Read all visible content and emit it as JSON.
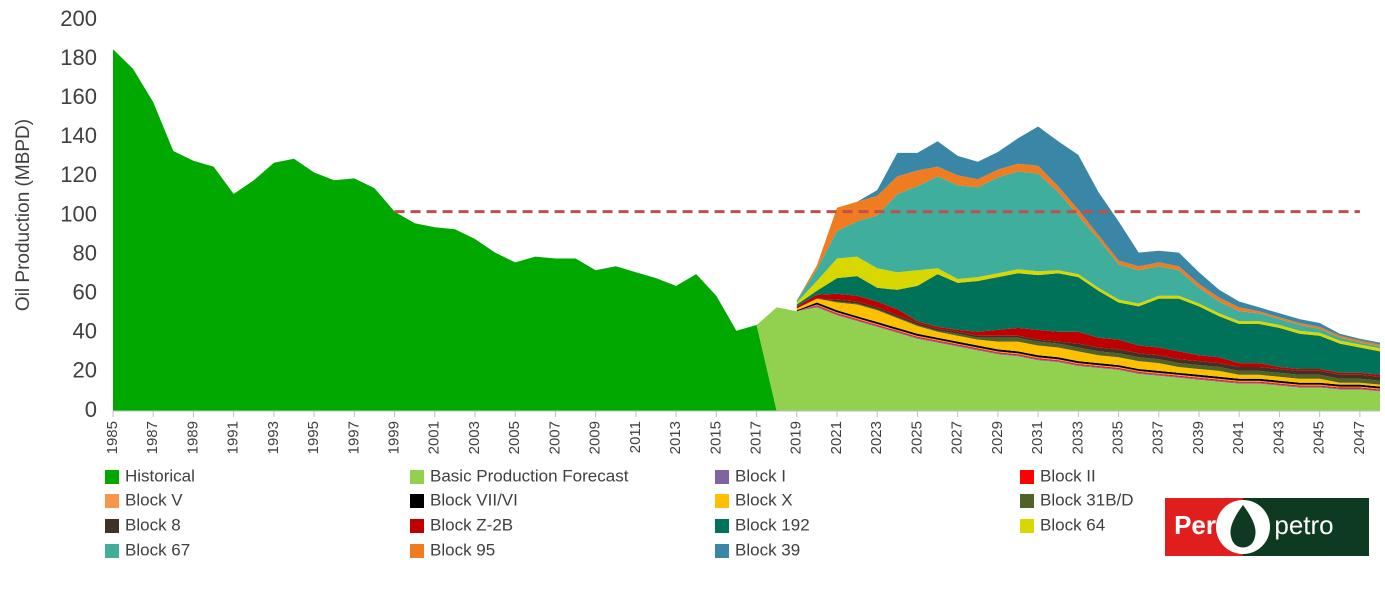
{
  "chart_data": {
    "type": "stacked_area",
    "y_label": "Oil Production (MBPD)",
    "x": [
      1985,
      1986,
      1987,
      1988,
      1989,
      1990,
      1991,
      1992,
      1993,
      1994,
      1995,
      1996,
      1997,
      1998,
      1999,
      2000,
      2001,
      2002,
      2003,
      2004,
      2005,
      2006,
      2007,
      2008,
      2009,
      2010,
      2011,
      2012,
      2013,
      2014,
      2015,
      2016,
      2017,
      2018,
      2019,
      2020,
      2021,
      2022,
      2023,
      2024,
      2025,
      2026,
      2027,
      2028,
      2029,
      2030,
      2031,
      2032,
      2033,
      2034,
      2035,
      2036,
      2037,
      2038,
      2039,
      2040,
      2041,
      2042,
      2043,
      2044,
      2045,
      2046,
      2047,
      2048
    ],
    "xlim": [
      1985,
      2048
    ],
    "xticks": [
      1985,
      1987,
      1989,
      1991,
      1993,
      1995,
      1997,
      1999,
      2001,
      2003,
      2005,
      2007,
      2009,
      2011,
      2013,
      2015,
      2017,
      2019,
      2021,
      2023,
      2025,
      2027,
      2029,
      2031,
      2033,
      2035,
      2037,
      2039,
      2041,
      2043,
      2045,
      2047
    ],
    "ylim": [
      0,
      200
    ],
    "yticks": [
      0,
      20,
      40,
      60,
      80,
      100,
      120,
      140,
      160,
      180,
      200
    ],
    "grid": false,
    "reference_line": {
      "value": 102,
      "x": [
        1999,
        2047
      ],
      "color": "#c0504d"
    },
    "series": [
      {
        "name": "Historical",
        "color": "#00a800",
        "values": [
          185,
          175,
          158,
          133,
          128,
          125,
          111,
          118,
          127,
          129,
          122,
          118,
          119,
          114,
          102,
          96,
          94,
          93,
          88,
          81,
          76,
          79,
          78,
          78,
          72,
          74,
          71,
          68,
          64,
          70,
          59,
          41,
          44,
          0,
          null,
          null,
          null,
          null,
          null,
          null,
          null,
          null,
          null,
          null,
          null,
          null,
          null,
          null,
          null,
          null,
          null,
          null,
          null,
          null,
          null,
          null,
          null,
          null,
          null,
          null,
          null,
          null,
          null,
          null
        ]
      },
      {
        "name": "Basic Production Forecast",
        "color": "#92d050",
        "values": [
          null,
          null,
          null,
          null,
          null,
          null,
          null,
          null,
          null,
          null,
          null,
          null,
          null,
          null,
          null,
          null,
          null,
          null,
          null,
          null,
          null,
          null,
          null,
          null,
          null,
          null,
          null,
          null,
          null,
          null,
          null,
          null,
          0,
          53,
          51,
          53,
          49,
          46,
          43,
          40,
          37,
          35,
          33,
          31,
          29,
          28,
          26,
          25,
          23,
          22,
          21,
          19,
          18,
          17,
          16,
          15,
          14,
          14,
          13,
          12,
          12,
          11,
          11,
          10
        ]
      },
      {
        "name": "Block I",
        "color": "#8064a2",
        "values": [
          null,
          null,
          null,
          null,
          null,
          null,
          null,
          null,
          null,
          null,
          null,
          null,
          null,
          null,
          null,
          null,
          null,
          null,
          null,
          null,
          null,
          null,
          null,
          null,
          null,
          null,
          null,
          null,
          null,
          null,
          null,
          null,
          null,
          null,
          0,
          0.5,
          0.5,
          0.5,
          0.5,
          0.5,
          0.5,
          0.5,
          0.5,
          0.5,
          0.5,
          0.5,
          0.5,
          0.5,
          0.5,
          0.5,
          0.5,
          0.5,
          0.5,
          0.5,
          0.5,
          0.5,
          0.5,
          0.5,
          0.5,
          0.5,
          0.5,
          0.5,
          0.5,
          0.5
        ]
      },
      {
        "name": "Block II",
        "color": "#ff0000",
        "values": [
          null,
          null,
          null,
          null,
          null,
          null,
          null,
          null,
          null,
          null,
          null,
          null,
          null,
          null,
          null,
          null,
          null,
          null,
          null,
          null,
          null,
          null,
          null,
          null,
          null,
          null,
          null,
          null,
          null,
          null,
          null,
          null,
          null,
          null,
          0,
          0.5,
          0.5,
          0.5,
          0.5,
          0.5,
          0.5,
          0.5,
          0.5,
          0.5,
          0.5,
          0.5,
          0.5,
          0.5,
          0.5,
          0.5,
          0.5,
          0.5,
          0.5,
          0.5,
          0.5,
          0.5,
          0.5,
          0.5,
          0.5,
          0.5,
          0.5,
          0.5,
          0.5,
          0.5
        ]
      },
      {
        "name": "Block V",
        "color": "#f79646",
        "values": [
          null,
          null,
          null,
          null,
          null,
          null,
          null,
          null,
          null,
          null,
          null,
          null,
          null,
          null,
          null,
          null,
          null,
          null,
          null,
          null,
          null,
          null,
          null,
          null,
          null,
          null,
          null,
          null,
          null,
          null,
          null,
          null,
          null,
          null,
          0,
          0.5,
          0.5,
          0.5,
          0.5,
          0.5,
          0.5,
          0.5,
          0.5,
          0.5,
          0.5,
          0.5,
          0.5,
          0.5,
          0.5,
          0.5,
          0.5,
          0.5,
          0.5,
          0.5,
          0.5,
          0.5,
          0.5,
          0.5,
          0.5,
          0.5,
          0.5,
          0.5,
          0.5,
          0.5
        ]
      },
      {
        "name": "Block VII/VI",
        "color": "#000000",
        "values": [
          null,
          null,
          null,
          null,
          null,
          null,
          null,
          null,
          null,
          null,
          null,
          null,
          null,
          null,
          null,
          null,
          null,
          null,
          null,
          null,
          null,
          null,
          null,
          null,
          null,
          null,
          null,
          null,
          null,
          null,
          null,
          null,
          null,
          null,
          0.5,
          1,
          1,
          1,
          1,
          1,
          1,
          1,
          1,
          1,
          1,
          1,
          1,
          1,
          1,
          1,
          1,
          1,
          1,
          1,
          1,
          1,
          1,
          1,
          1,
          1,
          1,
          1,
          1,
          1
        ]
      },
      {
        "name": "Block X",
        "color": "#ffc000",
        "values": [
          null,
          null,
          null,
          null,
          null,
          null,
          null,
          null,
          null,
          null,
          null,
          null,
          null,
          null,
          null,
          null,
          null,
          null,
          null,
          null,
          null,
          null,
          null,
          null,
          null,
          null,
          null,
          null,
          null,
          null,
          null,
          null,
          null,
          null,
          1,
          2,
          4,
          6,
          6,
          5,
          4,
          3,
          3,
          3,
          4,
          5,
          5,
          5,
          5,
          4,
          4,
          4,
          4,
          3,
          3,
          3,
          2,
          2,
          2,
          2,
          2,
          1,
          1,
          1
        ]
      },
      {
        "name": "Block 31B/D",
        "color": "#4f6228",
        "values": [
          null,
          null,
          null,
          null,
          null,
          null,
          null,
          null,
          null,
          null,
          null,
          null,
          null,
          null,
          null,
          null,
          null,
          null,
          null,
          null,
          null,
          null,
          null,
          null,
          null,
          null,
          null,
          null,
          null,
          null,
          null,
          null,
          null,
          null,
          0,
          0,
          0.5,
          0.5,
          0.5,
          0.5,
          0.5,
          0.5,
          1,
          1,
          2,
          2,
          2,
          2,
          2,
          2,
          2,
          2,
          2,
          2,
          2,
          2,
          2,
          2,
          2,
          2,
          2,
          2,
          2,
          2
        ]
      },
      {
        "name": "Block 8",
        "color": "#403224",
        "values": [
          null,
          null,
          null,
          null,
          null,
          null,
          null,
          null,
          null,
          null,
          null,
          null,
          null,
          null,
          null,
          null,
          null,
          null,
          null,
          null,
          null,
          null,
          null,
          null,
          null,
          null,
          null,
          null,
          null,
          null,
          null,
          null,
          null,
          null,
          0,
          0,
          1,
          1,
          1,
          1,
          1,
          1,
          1,
          1,
          1,
          1,
          1,
          1,
          2,
          2,
          2,
          2,
          2,
          2,
          2,
          2,
          2,
          2,
          2,
          2,
          2,
          2,
          2,
          2
        ]
      },
      {
        "name": "Block Z-2B",
        "color": "#c00000",
        "values": [
          null,
          null,
          null,
          null,
          null,
          null,
          null,
          null,
          null,
          null,
          null,
          null,
          null,
          null,
          null,
          null,
          null,
          null,
          null,
          null,
          null,
          null,
          null,
          null,
          null,
          null,
          null,
          null,
          null,
          null,
          null,
          null,
          null,
          null,
          1,
          2,
          3,
          3,
          3,
          3,
          1,
          1,
          1,
          2,
          3,
          4,
          5,
          5,
          6,
          5,
          5,
          4,
          4,
          4,
          3,
          3,
          2,
          2,
          1,
          1,
          1,
          1,
          1,
          1
        ]
      },
      {
        "name": "Block 192",
        "color": "#00725a",
        "values": [
          null,
          null,
          null,
          null,
          null,
          null,
          null,
          null,
          null,
          null,
          null,
          null,
          null,
          null,
          null,
          null,
          null,
          null,
          null,
          null,
          null,
          null,
          null,
          null,
          null,
          null,
          null,
          null,
          null,
          null,
          null,
          null,
          null,
          null,
          1,
          2,
          8,
          10,
          7,
          10,
          18,
          27,
          24,
          26,
          27,
          28,
          28,
          30,
          28,
          24,
          19,
          20,
          25,
          27,
          25,
          21,
          20,
          20,
          20,
          18,
          17,
          15,
          13,
          12
        ]
      },
      {
        "name": "Block 64",
        "color": "#d8d800",
        "values": [
          null,
          null,
          null,
          null,
          null,
          null,
          null,
          null,
          null,
          null,
          null,
          null,
          null,
          null,
          null,
          null,
          null,
          null,
          null,
          null,
          null,
          null,
          null,
          null,
          null,
          null,
          null,
          null,
          null,
          null,
          null,
          null,
          null,
          null,
          1,
          5,
          10,
          10,
          10,
          9,
          8,
          3,
          2,
          2,
          2,
          2,
          2,
          1.5,
          1.5,
          1.5,
          1.5,
          1.5,
          1.5,
          1.5,
          1.5,
          1.5,
          1.5,
          1.5,
          1.5,
          1.5,
          1.5,
          1.5,
          1.5,
          1.5
        ]
      },
      {
        "name": "Block 67",
        "color": "#3fae9c",
        "values": [
          null,
          null,
          null,
          null,
          null,
          null,
          null,
          null,
          null,
          null,
          null,
          null,
          null,
          null,
          null,
          null,
          null,
          null,
          null,
          null,
          null,
          null,
          null,
          null,
          null,
          null,
          null,
          null,
          null,
          null,
          null,
          null,
          null,
          null,
          1,
          6,
          14,
          18,
          27,
          40,
          43,
          47,
          48,
          46,
          49,
          50,
          50,
          40,
          30,
          25,
          18,
          17,
          15,
          13,
          8,
          6,
          5,
          4,
          3,
          3,
          2,
          1.5,
          1,
          1
        ]
      },
      {
        "name": "Block 95",
        "color": "#f07c22",
        "values": [
          null,
          null,
          null,
          null,
          null,
          null,
          null,
          null,
          null,
          null,
          null,
          null,
          null,
          null,
          null,
          null,
          null,
          null,
          null,
          null,
          null,
          null,
          null,
          null,
          null,
          null,
          null,
          null,
          null,
          null,
          null,
          null,
          null,
          null,
          0,
          2,
          12,
          10,
          10,
          9,
          8,
          5,
          5,
          4,
          4,
          4,
          4,
          3,
          3,
          2,
          2,
          2,
          2,
          2,
          2,
          2,
          2,
          1,
          1,
          1,
          1,
          1,
          1,
          1
        ]
      },
      {
        "name": "Block 39",
        "color": "#3a86a6",
        "values": [
          null,
          null,
          null,
          null,
          null,
          null,
          null,
          null,
          null,
          null,
          null,
          null,
          null,
          null,
          null,
          null,
          null,
          null,
          null,
          null,
          null,
          null,
          null,
          null,
          null,
          null,
          null,
          null,
          null,
          null,
          null,
          null,
          null,
          null,
          0,
          0,
          0,
          0,
          3,
          12,
          9,
          13,
          10,
          9,
          9,
          13,
          20,
          23,
          28,
          22,
          20,
          7,
          6,
          7,
          6,
          4,
          3,
          2,
          2,
          2,
          2,
          1,
          1,
          1
        ]
      }
    ]
  },
  "logo": {
    "left": "Perú",
    "right": "petro"
  }
}
